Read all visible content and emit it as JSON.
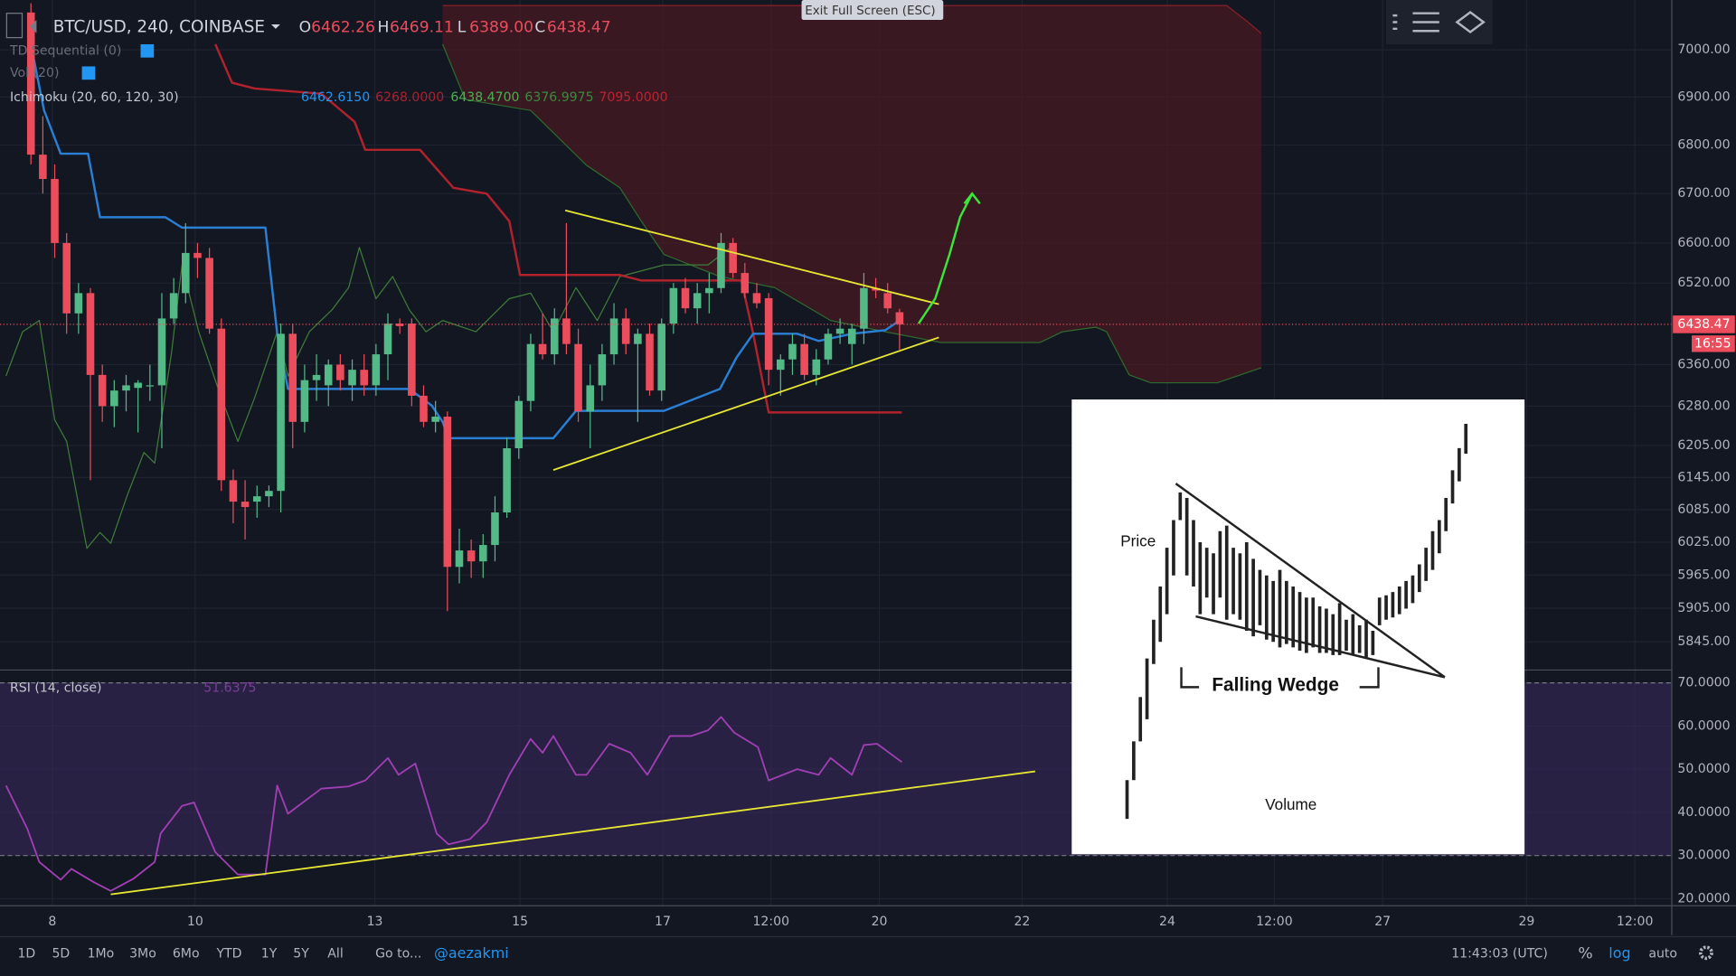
{
  "chart_data": {
    "type": "candlestick",
    "symbol": "BTC/USD, 240, COINBASE",
    "ohlc_header": [
      {
        "label": "O",
        "value": "6462.26"
      },
      {
        "label": "H",
        "value": "6469.11"
      },
      {
        "label": "L",
        "value": "6389.00"
      },
      {
        "label": "C",
        "value": "6438.47"
      }
    ],
    "indicators": [
      {
        "name": "TD Sequential (0)"
      },
      {
        "name": "Vol (20)"
      },
      {
        "name": "Ichimoku (20, 60, 120, 30)",
        "values": [
          {
            "text": "6462.6150",
            "color": "#2196f3"
          },
          {
            "text": "6268.0000",
            "color": "#a8232f"
          },
          {
            "text": "6438.4700",
            "color": "#4caf50"
          },
          {
            "text": "6376.9975",
            "color": "#3b8a3e"
          },
          {
            "text": "7095.0000",
            "color": "#c0232f"
          }
        ]
      }
    ],
    "log": true,
    "grid": true,
    "up_color": "#53b987",
    "down_color": "#eb4d5c",
    "xlim": [
      -2.6,
      137.9
    ],
    "ylim": [
      5796,
      7107
    ],
    "xticks": [
      {
        "value": 1.8,
        "label": "8"
      },
      {
        "value": 13.8,
        "label": "10"
      },
      {
        "value": 28.9,
        "label": "13"
      },
      {
        "value": 41.1,
        "label": "15"
      },
      {
        "value": 53.1,
        "label": "17"
      },
      {
        "value": 62.2,
        "label": "12:00"
      },
      {
        "value": 71.3,
        "label": "20"
      },
      {
        "value": 83.3,
        "label": "22"
      },
      {
        "value": 95.5,
        "label": "24"
      },
      {
        "value": 104.5,
        "label": "12:00"
      },
      {
        "value": 113.6,
        "label": "27"
      },
      {
        "value": 125.7,
        "label": "29"
      },
      {
        "value": 134.8,
        "label": "12:00"
      }
    ],
    "yticks": [
      {
        "value": 7000,
        "label": "7000.00"
      },
      {
        "value": 6900,
        "label": "6900.00"
      },
      {
        "value": 6800,
        "label": "6800.00"
      },
      {
        "value": 6700,
        "label": "6700.00"
      },
      {
        "value": 6600,
        "label": "6600.00"
      },
      {
        "value": 6520,
        "label": "6520.00"
      },
      {
        "value": 6360,
        "label": "6360.00"
      },
      {
        "value": 6280,
        "label": "6280.00"
      },
      {
        "value": 6205,
        "label": "6205.00"
      },
      {
        "value": 6145,
        "label": "6145.00"
      },
      {
        "value": 6085,
        "label": "6085.00"
      },
      {
        "value": 6025,
        "label": "6025.00"
      },
      {
        "value": 5965,
        "label": "5965.00"
      },
      {
        "value": 5905,
        "label": "5905.00"
      },
      {
        "value": 5845,
        "label": "5845.00"
      }
    ],
    "ohlc": [
      [
        7080,
        7100,
        6760,
        6780
      ],
      [
        6780,
        6860,
        6700,
        6730
      ],
      [
        6730,
        6760,
        6570,
        6600
      ],
      [
        6600,
        6620,
        6420,
        6460
      ],
      [
        6460,
        6520,
        6420,
        6500
      ],
      [
        6500,
        6510,
        6140,
        6340
      ],
      [
        6340,
        6360,
        6250,
        6280
      ],
      [
        6280,
        6330,
        6240,
        6310
      ],
      [
        6310,
        6340,
        6270,
        6320
      ],
      [
        6315,
        6330,
        6230,
        6325
      ],
      [
        6320,
        6360,
        6290,
        6320
      ],
      [
        6320,
        6500,
        6200,
        6450
      ],
      [
        6450,
        6530,
        6440,
        6500
      ],
      [
        6500,
        6640,
        6480,
        6580
      ],
      [
        6580,
        6600,
        6530,
        6570
      ],
      [
        6570,
        6590,
        6420,
        6430
      ],
      [
        6430,
        6450,
        6120,
        6140
      ],
      [
        6140,
        6160,
        6060,
        6100
      ],
      [
        6100,
        6140,
        6030,
        6090
      ],
      [
        6100,
        6130,
        6070,
        6110
      ],
      [
        6110,
        6130,
        6090,
        6120
      ],
      [
        6120,
        6440,
        6080,
        6420
      ],
      [
        6420,
        6440,
        6200,
        6250
      ],
      [
        6250,
        6360,
        6230,
        6330
      ],
      [
        6330,
        6380,
        6290,
        6340
      ],
      [
        6320,
        6370,
        6280,
        6360
      ],
      [
        6360,
        6380,
        6310,
        6330
      ],
      [
        6320,
        6370,
        6290,
        6350
      ],
      [
        6350,
        6380,
        6300,
        6320
      ],
      [
        6320,
        6400,
        6300,
        6380
      ],
      [
        6380,
        6460,
        6330,
        6440
      ],
      [
        6440,
        6450,
        6420,
        6435
      ],
      [
        6440,
        6450,
        6280,
        6300
      ],
      [
        6300,
        6320,
        6240,
        6250
      ],
      [
        6250,
        6290,
        6230,
        6260
      ],
      [
        6260,
        6270,
        5900,
        5980
      ],
      [
        5980,
        6050,
        5950,
        6010
      ],
      [
        6010,
        6030,
        5960,
        5990
      ],
      [
        5990,
        6040,
        5960,
        6020
      ],
      [
        6020,
        6110,
        5990,
        6080
      ],
      [
        6080,
        6220,
        6070,
        6200
      ],
      [
        6200,
        6300,
        6180,
        6290
      ],
      [
        6290,
        6420,
        6270,
        6400
      ],
      [
        6400,
        6460,
        6370,
        6380
      ],
      [
        6380,
        6470,
        6360,
        6450
      ],
      [
        6450,
        6640,
        6380,
        6400
      ],
      [
        6400,
        6430,
        6250,
        6270
      ],
      [
        6270,
        6360,
        6200,
        6320
      ],
      [
        6320,
        6400,
        6290,
        6380
      ],
      [
        6380,
        6480,
        6360,
        6450
      ],
      [
        6450,
        6470,
        6380,
        6400
      ],
      [
        6400,
        6430,
        6250,
        6420
      ],
      [
        6420,
        6440,
        6300,
        6310
      ],
      [
        6310,
        6450,
        6290,
        6440
      ],
      [
        6440,
        6520,
        6420,
        6510
      ],
      [
        6510,
        6530,
        6460,
        6470
      ],
      [
        6470,
        6520,
        6440,
        6500
      ],
      [
        6500,
        6540,
        6460,
        6510
      ],
      [
        6510,
        6620,
        6500,
        6600
      ],
      [
        6600,
        6610,
        6530,
        6540
      ],
      [
        6540,
        6560,
        6490,
        6500
      ],
      [
        6500,
        6520,
        6470,
        6480
      ],
      [
        6490,
        6500,
        6320,
        6350
      ],
      [
        6350,
        6380,
        6300,
        6370
      ],
      [
        6370,
        6420,
        6340,
        6400
      ],
      [
        6400,
        6420,
        6330,
        6340
      ],
      [
        6340,
        6390,
        6320,
        6370
      ],
      [
        6370,
        6430,
        6360,
        6420
      ],
      [
        6420,
        6450,
        6400,
        6430
      ],
      [
        6400,
        6440,
        6360,
        6430
      ],
      [
        6430,
        6540,
        6400,
        6510
      ],
      [
        6510,
        6530,
        6490,
        6505
      ],
      [
        6500,
        6520,
        6460,
        6470
      ],
      [
        6462.26,
        6469.11,
        6389,
        6438.47
      ]
    ],
    "last_price": 6438.47,
    "countdown": "16:55",
    "ichimoku": {
      "conversion": {
        "color": "#2a7fd4",
        "x": [
          0,
          1.1,
          2.5,
          4.8,
          5.8,
          11.3,
          12.7,
          19.7,
          20.7,
          21.6,
          31.8,
          33.7,
          34.6,
          35.1,
          43.9,
          45.8,
          53.2,
          57.9,
          59.3,
          60.7,
          64.4,
          66.2,
          69.0,
          71.8,
          73.2
        ],
        "values": [
          7012,
          6872,
          6782,
          6782,
          6652,
          6652,
          6631,
          6631,
          6420,
          6313,
          6313,
          6281,
          6250,
          6219,
          6219,
          6271,
          6271,
          6313,
          6374,
          6420,
          6420,
          6406,
          6420,
          6427,
          6449
        ]
      },
      "base": {
        "color": "#b2222d",
        "x": [
          15.5,
          16.9,
          18.8,
          24.4,
          27.2,
          28.1,
          32.7,
          35.5,
          38.3,
          40.2,
          41.1,
          49.5,
          51.3,
          59.7,
          60.7,
          62.0,
          73.2
        ],
        "values": [
          7012,
          6930,
          6918,
          6907,
          6848,
          6790,
          6790,
          6712,
          6700,
          6644,
          6536,
          6536,
          6525,
          6525,
          6420,
          6268,
          6268
        ]
      },
      "lagging": {
        "color": "#3f7d3a",
        "x": [
          -2.1,
          -0.7,
          0.7,
          2.0,
          3.0,
          4.7,
          5.8,
          6.7,
          8.1,
          9.5,
          10.4,
          11.8,
          12.7,
          14.1,
          16.0,
          17.4,
          18.8,
          20.7,
          21.6,
          23.4,
          25.3,
          26.7,
          27.6,
          29.0,
          30.4,
          31.8,
          33.2,
          34.6,
          37.4,
          40.2,
          42.0,
          43.9,
          45.8,
          47.6,
          49.5,
          53.2,
          56.9,
          58.8
        ],
        "values": [
          6338,
          6424,
          6446,
          6254,
          6213,
          6014,
          6043,
          6023,
          6112,
          6192,
          6172,
          6381,
          6556,
          6424,
          6296,
          6213,
          6296,
          6424,
          6338,
          6424,
          6467,
          6511,
          6591,
          6489,
          6533,
          6467,
          6424,
          6446,
          6424,
          6489,
          6500,
          6424,
          6511,
          6446,
          6533,
          6556,
          6556,
          6591
        ]
      },
      "span_a": {
        "color": "#2e6b2e",
        "x": [
          34.6,
          36.5,
          42.0,
          46.7,
          49.5,
          51.3,
          53.2,
          57.9,
          62.5,
          67.2,
          71.8,
          76.5,
          84.8,
          86.7,
          89.5,
          90.4,
          92.3,
          94.1,
          99.7,
          103.4
        ],
        "values": [
          7012,
          6895,
          6872,
          6758,
          6712,
          6644,
          6577,
          6533,
          6511,
          6446,
          6424,
          6403,
          6403,
          6424,
          6433,
          6424,
          6340,
          6325,
          6325,
          6354
        ]
      },
      "span_b": {
        "color": "#8a1f28",
        "x": [
          34.6,
          100.5,
          102.3,
          103.4
        ],
        "values": [
          7095,
          7095,
          7059,
          7035
        ]
      },
      "cloud_color": "#4a1a22"
    },
    "trendlines": [
      {
        "color": "#e6e633",
        "x": [
          44.9,
          76.3
        ],
        "values": [
          6666,
          6478
        ]
      },
      {
        "color": "#e6e633",
        "x": [
          43.9,
          76.3
        ],
        "values": [
          6159,
          6413
        ]
      }
    ],
    "arrow": {
      "color": "#39e639",
      "x": [
        74.6,
        76.0,
        77.2,
        78.1,
        79.1
      ],
      "values": [
        6440,
        6489,
        6577,
        6653,
        6700
      ]
    },
    "rsi": {
      "title": "RSI (14, close)",
      "value_text": "51.6375",
      "color": "#a03fb4",
      "band": [
        30,
        70
      ],
      "band_color": "#3a2a5e",
      "ylim": [
        18.5,
        73.1
      ],
      "yticks": [
        {
          "value": 70,
          "label": "70.0000"
        },
        {
          "value": 60,
          "label": "60.0000"
        },
        {
          "value": 50,
          "label": "50.0000"
        },
        {
          "value": 40,
          "label": "40.0000"
        },
        {
          "value": 30,
          "label": "30.0000"
        },
        {
          "value": 20,
          "label": "20.0000"
        }
      ],
      "x": [
        -2.1,
        -0.3,
        0.7,
        2.5,
        3.4,
        5.3,
        6.7,
        8.6,
        10.4,
        10.9,
        12.7,
        13.7,
        15.5,
        17.4,
        19.7,
        20.7,
        21.6,
        24.4,
        26.7,
        28.1,
        30.0,
        30.9,
        32.3,
        34.1,
        35.1,
        36.9,
        38.3,
        40.2,
        42.0,
        43.0,
        43.9,
        45.8,
        46.7,
        48.6,
        50.4,
        51.8,
        53.7,
        55.5,
        56.9,
        58.0,
        59.1,
        61.1,
        62.0,
        64.4,
        66.2,
        67.2,
        69.0,
        70.0,
        71.1,
        73.2
      ],
      "values": [
        46.2,
        36.2,
        28.5,
        24.4,
        26.9,
        23.8,
        21.8,
        24.6,
        28.5,
        35.1,
        41.5,
        42.3,
        30.8,
        25.6,
        25.6,
        46.2,
        39.7,
        45.5,
        46.0,
        47.4,
        52.6,
        48.7,
        51.3,
        35.1,
        32.6,
        33.8,
        37.7,
        48.7,
        57.0,
        53.8,
        57.7,
        48.7,
        48.7,
        55.9,
        53.8,
        48.7,
        57.7,
        57.7,
        59.0,
        62.1,
        58.5,
        55.1,
        47.4,
        50.0,
        48.7,
        52.6,
        48.7,
        55.6,
        55.9,
        51.6375
      ],
      "trendline": {
        "color": "#e6e633",
        "x": [
          6.7,
          84.4
        ],
        "values": [
          21.0,
          49.5
        ]
      }
    }
  },
  "ui": {
    "exit_fullscreen": "Exit Full Screen (ESC)",
    "ranges": [
      "1D",
      "5D",
      "1Mo",
      "3Mo",
      "6Mo",
      "YTD",
      "1Y",
      "5Y",
      "All"
    ],
    "goto": "Go to...",
    "user": "@aezakmi",
    "clock": "11:43:03 (UTC)",
    "percent": "%",
    "log": "log",
    "auto": "auto"
  },
  "inset": {
    "price": "Price",
    "title": "Falling Wedge",
    "volume": "Volume"
  }
}
